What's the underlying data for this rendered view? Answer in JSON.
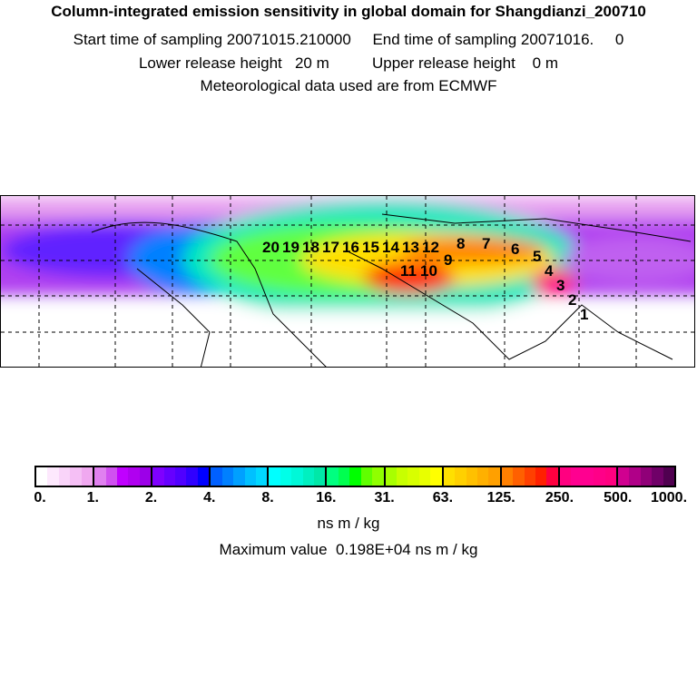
{
  "title": "Column-integrated emission sensitivity in global domain for Shangdianzi_200710",
  "line2": "Start time of sampling 20071015.210000     End time of sampling 20071016.     0",
  "line3": "Lower release height   20 m          Upper release height    0 m",
  "line4": "Meteorological data used are from ECMWF",
  "trajectory_labels": [
    "20",
    "19",
    "18",
    "17",
    "16",
    "15",
    "14",
    "13",
    "12",
    "11",
    "10",
    "9",
    "8",
    "7",
    "6",
    "5",
    "4",
    "3",
    "2",
    "1"
  ],
  "colorbar": {
    "ticks": [
      "0.",
      "1.",
      "2.",
      "4.",
      "8.",
      "16.",
      "31.",
      "63.",
      "125.",
      "250.",
      "500.",
      "1000."
    ],
    "colors": [
      [
        "#ffffff",
        "#fde8fd",
        "#f9d4f9",
        "#f5bff5",
        "#f0a8f0"
      ],
      [
        "#e080f0",
        "#d050f0",
        "#c000ff",
        "#b000f0",
        "#9c00e8"
      ],
      [
        "#7f00ff",
        "#6600ff",
        "#5000ff",
        "#3000ff",
        "#0000ff"
      ],
      [
        "#0060ff",
        "#0080ff",
        "#00a0ff",
        "#00c0ff",
        "#00d8ff"
      ],
      [
        "#00ffff",
        "#00ffe8",
        "#00f8d8",
        "#00f0c0",
        "#00e8a8"
      ],
      [
        "#00ff80",
        "#00ff50",
        "#00ff00",
        "#60ff00",
        "#90ff00"
      ],
      [
        "#a8ff00",
        "#c8ff00",
        "#d8ff00",
        "#e8ff00",
        "#ffff00"
      ],
      [
        "#ffe000",
        "#ffd000",
        "#ffc000",
        "#ffb000",
        "#ffa000"
      ],
      [
        "#ff8000",
        "#ff6000",
        "#ff4000",
        "#ff2000",
        "#ff0040"
      ],
      [
        "#ff0080",
        "#ff0090",
        "#ff0090",
        "#ff0088",
        "#ff0080"
      ],
      [
        "#d00090",
        "#b00088",
        "#900078",
        "#700068",
        "#500050"
      ]
    ],
    "unit": "ns m / kg"
  },
  "max_text": "Maximum value  0.198E+04 ns m / kg"
}
